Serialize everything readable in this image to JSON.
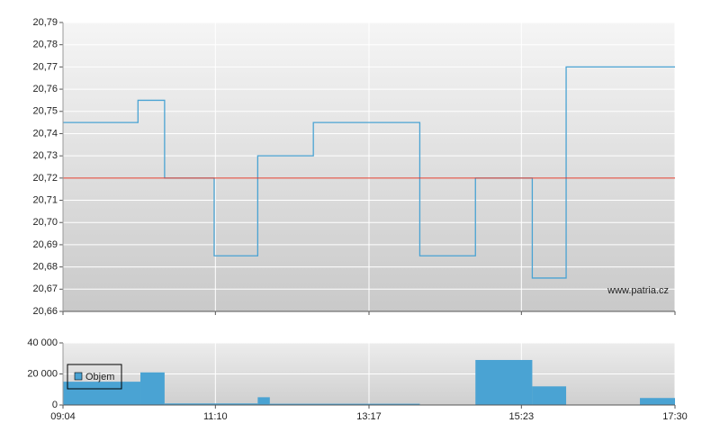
{
  "chart_data": [
    {
      "type": "line",
      "x": [
        544,
        606,
        606,
        628,
        628,
        669,
        669,
        705,
        705,
        751,
        751,
        839,
        839,
        885,
        885,
        932,
        932,
        960,
        960,
        1050
      ],
      "series": [
        {
          "color": "#4aa3d3",
          "values": [
            20.745,
            20.745,
            20.755,
            20.755,
            20.72,
            20.72,
            20.685,
            20.685,
            20.73,
            20.73,
            20.745,
            20.745,
            20.685,
            20.685,
            20.72,
            20.72,
            20.675,
            20.675,
            20.77,
            20.77
          ]
        }
      ],
      "reference_line": 20.72,
      "reference_color": "#e03a2a",
      "xlim": [
        544,
        1050
      ],
      "ylim": [
        20.66,
        20.79
      ],
      "yticks": [
        {
          "value": 20.66,
          "label": "20,66"
        },
        {
          "value": 20.67,
          "label": "20,67"
        },
        {
          "value": 20.68,
          "label": "20,68"
        },
        {
          "value": 20.69,
          "label": "20,69"
        },
        {
          "value": 20.7,
          "label": "20,70"
        },
        {
          "value": 20.71,
          "label": "20,71"
        },
        {
          "value": 20.72,
          "label": "20,72"
        },
        {
          "value": 20.73,
          "label": "20,73"
        },
        {
          "value": 20.74,
          "label": "20,74"
        },
        {
          "value": 20.75,
          "label": "20,75"
        },
        {
          "value": 20.76,
          "label": "20,76"
        },
        {
          "value": 20.77,
          "label": "20,77"
        },
        {
          "value": 20.78,
          "label": "20,78"
        },
        {
          "value": 20.79,
          "label": "20,79"
        }
      ],
      "grid": true,
      "annotation": "www.patria.cz"
    },
    {
      "type": "histogram",
      "series": [
        {
          "name": "Objem",
          "color": "#4aa3d3",
          "bins": [
            544,
            608,
            628,
            705,
            715,
            839,
            885,
            932,
            960,
            1021,
            1050
          ],
          "values": [
            15000,
            21000,
            1000,
            5000,
            800,
            0,
            29000,
            12000,
            0,
            4500
          ]
        }
      ],
      "xlim": [
        544,
        1050
      ],
      "xticks": [
        {
          "value": 544,
          "label": "09:04"
        },
        {
          "value": 670,
          "label": "11:10"
        },
        {
          "value": 797,
          "label": "13:17"
        },
        {
          "value": 923,
          "label": "15:23"
        },
        {
          "value": 1050,
          "label": "17:30"
        }
      ],
      "ylim": [
        0,
        40000
      ],
      "yticks": [
        0,
        {
          "value": 20000,
          "label": "20 000"
        },
        {
          "value": 40000,
          "label": "40 000"
        }
      ],
      "grid": true,
      "legend": "upper-left"
    }
  ]
}
